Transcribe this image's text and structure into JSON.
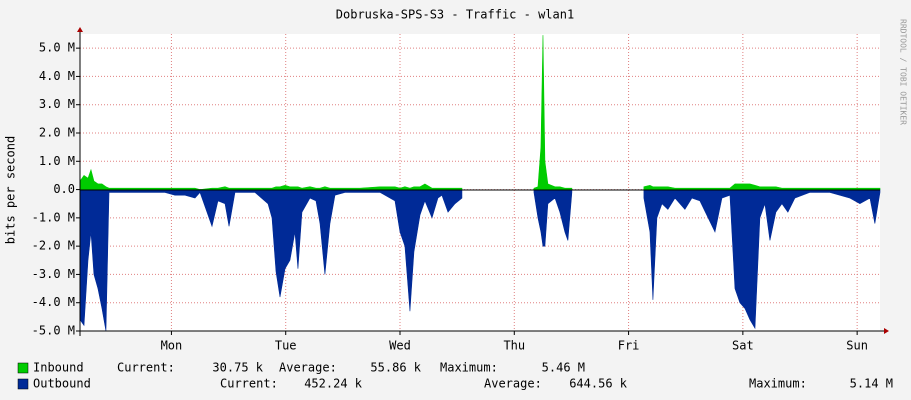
{
  "chart_data": {
    "type": "area",
    "title": "Dobruska-SPS-S3 - Traffic - wlan1",
    "y_label": "bits per second",
    "watermark": "RRDTOOL / TOBI OETIKER",
    "xlim": [
      0,
      7
    ],
    "xticks": [
      {
        "value": 0.8,
        "label": "Mon"
      },
      {
        "value": 1.8,
        "label": "Tue"
      },
      {
        "value": 2.8,
        "label": "Wed"
      },
      {
        "value": 3.8,
        "label": "Thu"
      },
      {
        "value": 4.8,
        "label": "Fri"
      },
      {
        "value": 5.8,
        "label": "Sat"
      },
      {
        "value": 6.8,
        "label": "Sun"
      }
    ],
    "ylim": [
      -5,
      5.5
    ],
    "yticks": [
      {
        "value": 5,
        "label": "5.0 M"
      },
      {
        "value": 4,
        "label": "4.0 M"
      },
      {
        "value": 3,
        "label": "3.0 M"
      },
      {
        "value": 2,
        "label": "2.0 M"
      },
      {
        "value": 1,
        "label": "1.0 M"
      },
      {
        "value": 0,
        "label": "0.0"
      },
      {
        "value": -1,
        "label": "-1.0 M"
      },
      {
        "value": -2,
        "label": "-2.0 M"
      },
      {
        "value": -3,
        "label": "-3.0 M"
      },
      {
        "value": -4,
        "label": "-4.0 M"
      },
      {
        "value": -5,
        "label": "-5.0 M"
      }
    ],
    "grid": true,
    "x": [
      0,
      0.035,
      0.07,
      0.096,
      0.122,
      0.157,
      0.192,
      0.227,
      0.254,
      0.35,
      0.525,
      0.744,
      0.831,
      0.919,
      1.006,
      1.05,
      1.155,
      1.207,
      1.269,
      1.304,
      1.356,
      1.531,
      1.645,
      1.68,
      1.715,
      1.75,
      1.794,
      1.837,
      1.881,
      1.907,
      1.942,
      2.012,
      2.065,
      2.1,
      2.143,
      2.187,
      2.231,
      2.318,
      2.45,
      2.625,
      2.756,
      2.8,
      2.843,
      2.887,
      2.922,
      2.975,
      3.018,
      3.08,
      3.132,
      3.167,
      3.22,
      3.281,
      3.342,
      3.395,
      3.972,
      4.007,
      4.033,
      4.051,
      4.068,
      4.094,
      4.156,
      4.199,
      4.243,
      4.269,
      4.304,
      4.357,
      4.934,
      4.987,
      5.013,
      5.048,
      5.092,
      5.144,
      5.206,
      5.293,
      5.354,
      5.424,
      5.556,
      5.617,
      5.687,
      5.731,
      5.774,
      5.818,
      5.862,
      5.906,
      5.949,
      5.993,
      6.037,
      6.089,
      6.142,
      6.194,
      6.255,
      6.387,
      6.562,
      6.737,
      6.824,
      6.912,
      6.955,
      7.0
    ],
    "series": [
      {
        "name": "Outbound",
        "color": "#002a97",
        "values": [
          -4.6,
          -4.8,
          -2.5,
          -1.5,
          -3.0,
          -3.5,
          -4.2,
          -5.0,
          -0.1,
          -0.1,
          -0.1,
          -0.1,
          -0.2,
          -0.2,
          -0.3,
          -0.1,
          -1.3,
          -0.4,
          -0.5,
          -1.3,
          -0.1,
          -0.1,
          -0.5,
          -1.0,
          -2.9,
          -3.8,
          -2.8,
          -2.5,
          -1.5,
          -2.8,
          -0.8,
          -0.3,
          -0.4,
          -1.2,
          -3.0,
          -1.2,
          -0.2,
          -0.1,
          -0.1,
          -0.1,
          -0.4,
          -1.5,
          -2.0,
          -4.3,
          -2.2,
          -0.9,
          -0.4,
          -1.0,
          -0.3,
          -0.2,
          -0.8,
          -0.5,
          -0.3,
          null,
          -0.1,
          -1.0,
          -1.5,
          -2.0,
          -2.0,
          -0.5,
          -0.3,
          -0.8,
          -1.5,
          -1.8,
          -0.1,
          null,
          -0.3,
          -1.5,
          -3.9,
          -1.0,
          -0.5,
          -0.7,
          -0.3,
          -0.7,
          -0.3,
          -0.4,
          -1.5,
          -0.3,
          -0.2,
          -3.5,
          -4.0,
          -4.2,
          -4.6,
          -4.9,
          -1.0,
          -0.5,
          -1.8,
          -0.8,
          -0.5,
          -0.8,
          -0.3,
          -0.1,
          -0.1,
          -0.3,
          -0.5,
          -0.3,
          -1.2,
          -0.1
        ],
        "stats": [
          {
            "label": "Current:",
            "value": "452.24 k"
          },
          {
            "label": "Average:",
            "value": "644.56 k"
          },
          {
            "label": "Maximum:",
            "value": "5.14 M"
          }
        ]
      },
      {
        "name": "Inbound",
        "color": "#00cc00",
        "values": [
          0.3,
          0.5,
          0.4,
          0.7,
          0.3,
          0.2,
          0.2,
          0.1,
          0.05,
          0.05,
          0.05,
          0.05,
          0.05,
          0.05,
          0.05,
          0,
          0.05,
          0.05,
          0.1,
          0.05,
          0.05,
          0.05,
          0.05,
          0.05,
          0.1,
          0.1,
          0.15,
          0.1,
          0.1,
          0.1,
          0.05,
          0.1,
          0.05,
          0.05,
          0.1,
          0.05,
          0.05,
          0.05,
          0.05,
          0.1,
          0.1,
          0.05,
          0.1,
          0.05,
          0.1,
          0.1,
          0.2,
          0.05,
          0.05,
          0.05,
          0.05,
          0.05,
          0.05,
          null,
          0.05,
          0.1,
          1.5,
          5.46,
          1.0,
          0.2,
          0.1,
          0.1,
          0.05,
          0.05,
          0.05,
          null,
          0.1,
          0.15,
          0.1,
          0.1,
          0.1,
          0.1,
          0.05,
          0.05,
          0.05,
          0.05,
          0.05,
          0.05,
          0.05,
          0.2,
          0.2,
          0.2,
          0.2,
          0.15,
          0.1,
          0.1,
          0.1,
          0.1,
          0.05,
          0.05,
          0.05,
          0.05,
          0.05,
          0.05,
          0.05,
          0.05,
          0.05,
          0.05
        ],
        "stats": [
          {
            "label": "Current:",
            "value": "30.75 k"
          },
          {
            "label": "Average:",
            "value": "55.86 k"
          },
          {
            "label": "Maximum:",
            "value": "5.46 M"
          }
        ]
      }
    ]
  }
}
